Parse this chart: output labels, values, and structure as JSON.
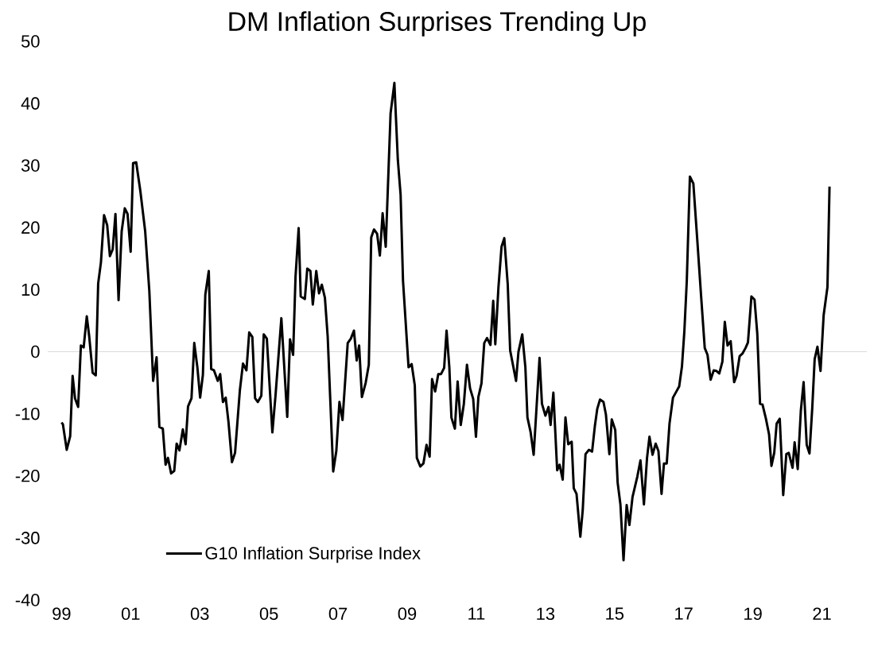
{
  "chart_data": {
    "type": "line",
    "title": "DM Inflation Surprises Trending Up",
    "x": [
      1999.0,
      1999.04,
      1999.15,
      1999.25,
      1999.32,
      1999.39,
      1999.48,
      1999.56,
      1999.64,
      1999.73,
      1999.8,
      1999.9,
      1999.99,
      2000.06,
      2000.14,
      2000.23,
      2000.32,
      2000.4,
      2000.48,
      2000.56,
      2000.65,
      2000.74,
      2000.83,
      2000.91,
      2001.0,
      2001.07,
      2001.16,
      2001.28,
      2001.42,
      2001.54,
      2001.65,
      2001.75,
      2001.83,
      2001.93,
      2002.01,
      2002.08,
      2002.17,
      2002.26,
      2002.33,
      2002.41,
      2002.51,
      2002.59,
      2002.66,
      2002.76,
      2002.84,
      2002.93,
      2003.01,
      2003.09,
      2003.16,
      2003.26,
      2003.33,
      2003.41,
      2003.52,
      2003.59,
      2003.67,
      2003.75,
      2003.83,
      2003.93,
      2004.02,
      2004.16,
      2004.25,
      2004.35,
      2004.43,
      2004.52,
      2004.6,
      2004.68,
      2004.78,
      2004.85,
      2004.94,
      2005.1,
      2005.19,
      2005.36,
      2005.53,
      2005.61,
      2005.7,
      2005.77,
      2005.86,
      2005.92,
      2006.04,
      2006.11,
      2006.2,
      2006.27,
      2006.37,
      2006.45,
      2006.53,
      2006.62,
      2006.7,
      2006.86,
      2006.95,
      2007.04,
      2007.13,
      2007.28,
      2007.37,
      2007.46,
      2007.54,
      2007.61,
      2007.69,
      2007.8,
      2007.89,
      2007.96,
      2008.04,
      2008.13,
      2008.21,
      2008.29,
      2008.38,
      2008.52,
      2008.63,
      2008.73,
      2008.81,
      2008.88,
      2009.04,
      2009.13,
      2009.22,
      2009.28,
      2009.38,
      2009.47,
      2009.56,
      2009.65,
      2009.72,
      2009.81,
      2009.9,
      2009.98,
      2010.07,
      2010.14,
      2010.22,
      2010.28,
      2010.38,
      2010.46,
      2010.55,
      2010.64,
      2010.73,
      2010.82,
      2010.91,
      2010.99,
      2011.06,
      2011.15,
      2011.23,
      2011.31,
      2011.41,
      2011.49,
      2011.55,
      2011.64,
      2011.73,
      2011.81,
      2011.91,
      2011.98,
      2012.15,
      2012.22,
      2012.33,
      2012.42,
      2012.48,
      2012.57,
      2012.66,
      2012.83,
      2012.9,
      2013.0,
      2013.09,
      2013.15,
      2013.23,
      2013.34,
      2013.41,
      2013.5,
      2013.58,
      2013.66,
      2013.76,
      2013.82,
      2013.9,
      2014.01,
      2014.08,
      2014.16,
      2014.26,
      2014.35,
      2014.43,
      2014.5,
      2014.58,
      2014.68,
      2014.75,
      2014.85,
      2014.92,
      2015.02,
      2015.09,
      2015.17,
      2015.26,
      2015.35,
      2015.43,
      2015.52,
      2015.66,
      2015.75,
      2015.85,
      2015.94,
      2016.01,
      2016.1,
      2016.19,
      2016.27,
      2016.36,
      2016.43,
      2016.51,
      2016.59,
      2016.69,
      2016.76,
      2016.87,
      2016.95,
      2017.02,
      2017.09,
      2017.18,
      2017.28,
      2017.39,
      2017.5,
      2017.61,
      2017.69,
      2017.78,
      2017.87,
      2017.95,
      2018.03,
      2018.12,
      2018.19,
      2018.27,
      2018.36,
      2018.46,
      2018.53,
      2018.62,
      2018.7,
      2018.79,
      2018.86,
      2018.96,
      2019.05,
      2019.13,
      2019.21,
      2019.28,
      2019.38,
      2019.47,
      2019.54,
      2019.62,
      2019.69,
      2019.78,
      2019.88,
      2019.97,
      2020.04,
      2020.15,
      2020.21,
      2020.3,
      2020.39,
      2020.47,
      2020.56,
      2020.64,
      2020.72,
      2020.79,
      2020.87,
      2020.96,
      2021.05,
      2021.16,
      2021.22
    ],
    "series": [
      {
        "name": "G10 Inflation Surprise Index",
        "color": "#000000",
        "values": [
          -11.4,
          -11.7,
          -15.8,
          -13.6,
          -3.9,
          -7.5,
          -8.9,
          1.0,
          0.7,
          5.7,
          2.5,
          -3.4,
          -3.8,
          11.0,
          14.4,
          22.0,
          20.4,
          15.4,
          16.5,
          22.2,
          8.3,
          19.4,
          23.1,
          22.2,
          16.1,
          30.4,
          30.5,
          25.9,
          19.4,
          9.8,
          -4.7,
          -0.9,
          -12.1,
          -12.4,
          -18.2,
          -17.1,
          -19.6,
          -19.2,
          -14.8,
          -15.9,
          -12.5,
          -14.9,
          -8.8,
          -7.5,
          1.4,
          -2.5,
          -7.4,
          -3.7,
          9.2,
          13.0,
          -2.8,
          -3.0,
          -4.7,
          -3.6,
          -8.1,
          -7.4,
          -11.3,
          -17.8,
          -16.3,
          -6.2,
          -1.9,
          -3.0,
          3.1,
          2.4,
          -7.5,
          -8.1,
          -7.1,
          2.8,
          2.1,
          -13.0,
          -7.1,
          5.4,
          -10.5,
          2.0,
          -0.5,
          12.1,
          19.9,
          8.9,
          8.5,
          13.4,
          13.0,
          7.6,
          13.0,
          9.4,
          10.8,
          8.7,
          2.5,
          -19.3,
          -16.0,
          -8.1,
          -11.0,
          1.4,
          2.1,
          3.4,
          -1.4,
          1.0,
          -7.3,
          -5.0,
          -2.1,
          18.4,
          19.7,
          19.0,
          15.5,
          22.3,
          16.9,
          38.4,
          43.3,
          30.9,
          25.3,
          11.4,
          -2.5,
          -2.0,
          -5.4,
          -17.1,
          -18.5,
          -18.0,
          -15.0,
          -16.9,
          -4.4,
          -6.4,
          -3.6,
          -3.6,
          -2.6,
          3.4,
          -2.5,
          -10.6,
          -12.4,
          -4.8,
          -11.8,
          -8.4,
          -2.1,
          -5.9,
          -7.6,
          -13.7,
          -7.3,
          -5.1,
          1.4,
          2.2,
          1.1,
          8.2,
          1.2,
          10.3,
          16.9,
          18.3,
          10.8,
          0.2,
          -4.7,
          0.0,
          2.8,
          -2.5,
          -10.6,
          -12.9,
          -16.6,
          -1.0,
          -8.4,
          -10.3,
          -8.9,
          -11.8,
          -6.6,
          -19.1,
          -18.2,
          -20.6,
          -10.6,
          -14.9,
          -14.5,
          -22.0,
          -22.9,
          -29.8,
          -25.5,
          -16.5,
          -15.8,
          -16.1,
          -12.0,
          -9.2,
          -7.7,
          -8.1,
          -10.1,
          -16.5,
          -10.9,
          -12.6,
          -21.1,
          -24.6,
          -33.6,
          -24.7,
          -27.9,
          -23.4,
          -20.1,
          -17.5,
          -24.6,
          -17.1,
          -13.7,
          -16.6,
          -14.8,
          -16.0,
          -22.9,
          -18.0,
          -18.0,
          -11.6,
          -7.4,
          -6.7,
          -5.6,
          -2.4,
          3.3,
          11.4,
          28.2,
          27.1,
          18.3,
          9.3,
          0.6,
          -0.5,
          -4.5,
          -3.0,
          -3.1,
          -3.5,
          -1.6,
          4.8,
          1.0,
          1.7,
          -4.9,
          -3.9,
          -0.7,
          -0.3,
          0.6,
          1.5,
          8.9,
          8.4,
          2.9,
          -8.4,
          -8.5,
          -10.8,
          -13.3,
          -18.4,
          -16.3,
          -11.6,
          -10.8,
          -23.1,
          -16.5,
          -16.3,
          -18.7,
          -14.6,
          -18.9,
          -9.5,
          -4.9,
          -15.0,
          -16.4,
          -9.1,
          -1.2,
          0.8,
          -3.1,
          5.9,
          10.4,
          26.6
        ]
      }
    ],
    "xlim": [
      1998.6,
      2022.3
    ],
    "xticks": [
      {
        "value": 1999,
        "label": "99"
      },
      {
        "value": 2001,
        "label": "01"
      },
      {
        "value": 2003,
        "label": "03"
      },
      {
        "value": 2005,
        "label": "05"
      },
      {
        "value": 2007,
        "label": "07"
      },
      {
        "value": 2009,
        "label": "09"
      },
      {
        "value": 2011,
        "label": "11"
      },
      {
        "value": 2013,
        "label": "13"
      },
      {
        "value": 2015,
        "label": "15"
      },
      {
        "value": 2017,
        "label": "17"
      },
      {
        "value": 2019,
        "label": "19"
      },
      {
        "value": 2021,
        "label": "21"
      }
    ],
    "ylim": [
      -40,
      50
    ],
    "yticks": [
      -40,
      -30,
      -20,
      -10,
      0,
      10,
      20,
      30,
      40,
      50
    ],
    "ref_lines": [
      {
        "axis": "y",
        "value": 0,
        "color": "#d9d9d9"
      }
    ],
    "legend": "bottom left",
    "line_style": "solid"
  }
}
